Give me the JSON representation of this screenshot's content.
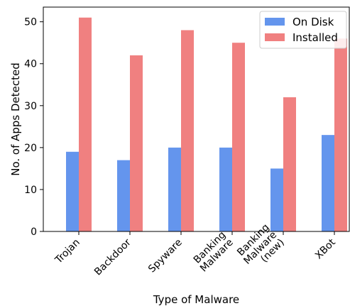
{
  "chart_data": {
    "type": "bar",
    "title": "",
    "xlabel": "Type of Malware",
    "ylabel": "No. of Apps Detected",
    "categories": [
      [
        "Trojan"
      ],
      [
        "Backdoor"
      ],
      [
        "Spyware"
      ],
      [
        "Banking",
        "Malware"
      ],
      [
        "Banking",
        "Malware",
        "(new)"
      ],
      [
        "XBot"
      ]
    ],
    "series": [
      {
        "name": "On Disk",
        "color": "#6495ed",
        "values": [
          19,
          17,
          20,
          20,
          15,
          23
        ]
      },
      {
        "name": "Installed",
        "color": "#f08080",
        "values": [
          51,
          42,
          48,
          45,
          32,
          46
        ]
      }
    ],
    "ylim": [
      0,
      53.5
    ],
    "yticks": [
      0,
      10,
      20,
      30,
      40,
      50
    ],
    "grid": false,
    "legend_position": "top-right"
  }
}
